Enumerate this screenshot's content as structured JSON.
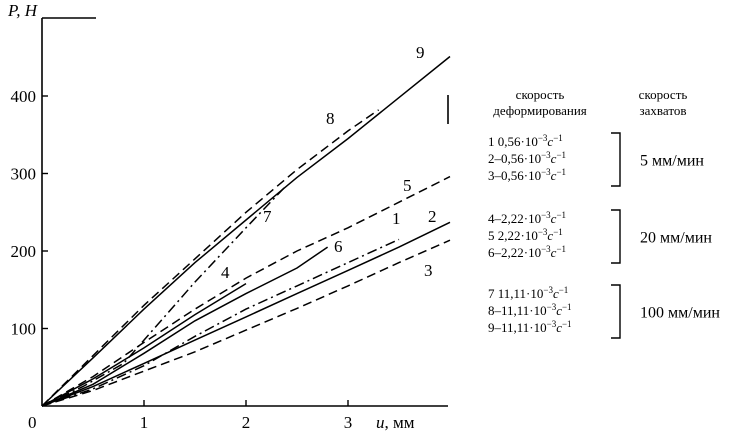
{
  "chart_data": {
    "type": "line",
    "xlabel_var": "u",
    "xlabel_unit": ", мм",
    "ylabel": "P, H",
    "xlim": [
      0,
      4
    ],
    "ylim": [
      0,
      450
    ],
    "x_ticks": [
      "0",
      "1",
      "2",
      "3"
    ],
    "y_ticks": [
      "100",
      "200",
      "300",
      "400"
    ],
    "series": [
      {
        "label": "1",
        "style": "dashdot",
        "points": [
          [
            0,
            0
          ],
          [
            0.5,
            22
          ],
          [
            1,
            52
          ],
          [
            1.5,
            90
          ],
          [
            2,
            125
          ],
          [
            2.5,
            155
          ],
          [
            3,
            185
          ],
          [
            3.5,
            215
          ]
        ]
      },
      {
        "label": "2",
        "style": "solid",
        "points": [
          [
            0,
            0
          ],
          [
            0.5,
            25
          ],
          [
            1,
            55
          ],
          [
            1.5,
            85
          ],
          [
            2,
            115
          ],
          [
            2.5,
            145
          ],
          [
            3,
            175
          ],
          [
            3.5,
            205
          ],
          [
            4,
            237
          ]
        ]
      },
      {
        "label": "3",
        "style": "dashed",
        "points": [
          [
            0,
            0
          ],
          [
            0.5,
            20
          ],
          [
            1,
            45
          ],
          [
            1.5,
            70
          ],
          [
            2,
            98
          ],
          [
            2.5,
            126
          ],
          [
            3,
            155
          ],
          [
            3.5,
            185
          ],
          [
            4,
            214
          ]
        ]
      },
      {
        "label": "4",
        "style": "solid",
        "points": [
          [
            0,
            0
          ],
          [
            0.5,
            35
          ],
          [
            1,
            75
          ],
          [
            1.5,
            118
          ],
          [
            2,
            158
          ]
        ]
      },
      {
        "label": "5",
        "style": "dashed",
        "points": [
          [
            0,
            0
          ],
          [
            0.5,
            38
          ],
          [
            1,
            82
          ],
          [
            1.5,
            125
          ],
          [
            2,
            165
          ],
          [
            2.5,
            200
          ],
          [
            3,
            230
          ],
          [
            3.5,
            263
          ],
          [
            4,
            296
          ]
        ]
      },
      {
        "label": "6",
        "style": "solid",
        "points": [
          [
            0,
            0
          ],
          [
            0.5,
            28
          ],
          [
            1,
            68
          ],
          [
            1.5,
            110
          ],
          [
            2,
            145
          ],
          [
            2.5,
            178
          ],
          [
            2.8,
            205
          ]
        ]
      },
      {
        "label": "7",
        "style": "dashdot",
        "points": [
          [
            0,
            0
          ],
          [
            0.4,
            25
          ],
          [
            0.8,
            55
          ],
          [
            1.1,
            100
          ],
          [
            1.5,
            160
          ],
          [
            2,
            230
          ],
          [
            2.4,
            285
          ]
        ]
      },
      {
        "label": "8",
        "style": "dashed",
        "points": [
          [
            0,
            0
          ],
          [
            0.5,
            65
          ],
          [
            1,
            130
          ],
          [
            1.5,
            190
          ],
          [
            2,
            250
          ],
          [
            2.5,
            305
          ],
          [
            3,
            355
          ],
          [
            3.3,
            382
          ]
        ]
      },
      {
        "label": "9",
        "style": "solid",
        "points": [
          [
            0,
            0
          ],
          [
            0.5,
            62
          ],
          [
            1,
            125
          ],
          [
            1.5,
            185
          ],
          [
            2,
            240
          ],
          [
            2.5,
            295
          ],
          [
            3,
            345
          ],
          [
            3.5,
            398
          ],
          [
            4,
            451
          ]
        ]
      }
    ],
    "legend": {
      "header_rate": [
        "скорость",
        "деформирования"
      ],
      "header_speed": [
        "скорость",
        "захватов"
      ],
      "groups": [
        {
          "speed": "5 мм/мин",
          "rows": [
            {
              "prefix": "1  0,56·10",
              "exp": "−3",
              "unit": "c",
              "unit_exp": "−1"
            },
            {
              "prefix": "2–0,56·10",
              "exp": "−3",
              "unit": "c",
              "unit_exp": "−1"
            },
            {
              "prefix": "3–0,56·10",
              "exp": "−3",
              "unit": "c",
              "unit_exp": "−1"
            }
          ]
        },
        {
          "speed": "20 мм/мин",
          "rows": [
            {
              "prefix": "4–2,22·10",
              "exp": "−3",
              "unit": "c",
              "unit_exp": "−1"
            },
            {
              "prefix": "5  2,22·10",
              "exp": "−3",
              "unit": "c",
              "unit_exp": "−1"
            },
            {
              "prefix": "6–2,22·10",
              "exp": "−3",
              "unit": "c",
              "unit_exp": "−1"
            }
          ]
        },
        {
          "speed": "100 мм/мин",
          "rows": [
            {
              "prefix": "7  11,11·10",
              "exp": "−3",
              "unit": "c",
              "unit_exp": "−1"
            },
            {
              "prefix": "8–11,11·10",
              "exp": "−3",
              "unit": "c",
              "unit_exp": "−1"
            },
            {
              "prefix": "9–11,11·10",
              "exp": "−3",
              "unit": "c",
              "unit_exp": "−1"
            }
          ]
        }
      ]
    }
  }
}
